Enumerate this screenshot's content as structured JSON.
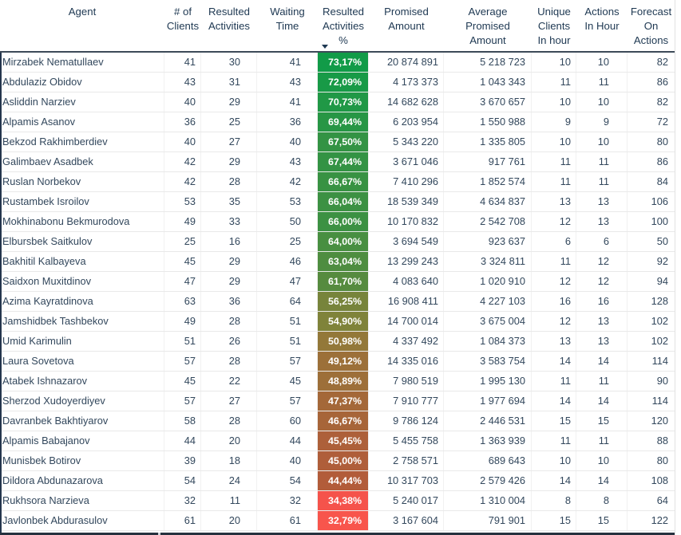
{
  "app": "BI report table visual",
  "colors": {
    "header_text": "#1e3852",
    "body_text": "#32475c",
    "header_underline": "#3d4a58",
    "row_gridline": "#e9e9e9",
    "scrollbar_dark": "#26313e",
    "pct_scale_max_green": "#119b48",
    "pct_scale_mid_olive": "#7f833a",
    "pct_scale_low_brown": "#b25c3a",
    "pct_scale_min_red": "#f8554c"
  },
  "chart_data": {
    "type": "table",
    "title": "Agent performance table",
    "sort": {
      "column": "Resulted Activities %",
      "direction": "desc"
    },
    "columns": [
      {
        "key": "agent",
        "label": "Agent",
        "align": "left"
      },
      {
        "key": "clients",
        "label": "# of\nClients",
        "align": "right"
      },
      {
        "key": "resulted",
        "label": "Resulted\nActivities",
        "align": "right"
      },
      {
        "key": "waiting",
        "label": "Waiting\nTime",
        "align": "right"
      },
      {
        "key": "pct",
        "label": "Resulted\nActivities\n%",
        "align": "right",
        "sorted": true
      },
      {
        "key": "promised",
        "label": "Promised\nAmount",
        "align": "right"
      },
      {
        "key": "avg",
        "label": "Average\nPromised\nAmount",
        "align": "right"
      },
      {
        "key": "unique",
        "label": "Unique\nClients\nIn hour",
        "align": "right"
      },
      {
        "key": "actions",
        "label": "Actions\nIn Hour",
        "align": "right"
      },
      {
        "key": "forecast",
        "label": "Forecast\nOn\nActions",
        "align": "right"
      }
    ],
    "rows": [
      {
        "cells": [
          "Mirzabek Nematullaev",
          "41",
          "30",
          "41",
          "73,17%",
          "20 874 891",
          "5 218 723",
          "10",
          "10",
          "82"
        ],
        "pct_color": "#119b48"
      },
      {
        "cells": [
          "Abdulaziz Obidov",
          "43",
          "31",
          "43",
          "72,09%",
          "4 173 373",
          "1 043 343",
          "11",
          "11",
          "86"
        ],
        "pct_color": "#189a47"
      },
      {
        "cells": [
          "Asliddin Narziev",
          "40",
          "29",
          "41",
          "70,73%",
          "14 682 628",
          "3 670 657",
          "10",
          "10",
          "82"
        ],
        "pct_color": "#209846"
      },
      {
        "cells": [
          "Alpamis Asanov",
          "36",
          "25",
          "36",
          "69,44%",
          "6 203 954",
          "1 550 988",
          "9",
          "9",
          "72"
        ],
        "pct_color": "#279645"
      },
      {
        "cells": [
          "Bekzod Rakhimberdiev",
          "40",
          "27",
          "40",
          "67,50%",
          "5 343 220",
          "1 335 805",
          "10",
          "10",
          "80"
        ],
        "pct_color": "#339344"
      },
      {
        "cells": [
          "Galimbaev Asadbek",
          "42",
          "29",
          "43",
          "67,44%",
          "3 671 046",
          "917 761",
          "11",
          "11",
          "86"
        ],
        "pct_color": "#339344"
      },
      {
        "cells": [
          "Ruslan Norbekov",
          "42",
          "28",
          "42",
          "66,67%",
          "7 410 296",
          "1 852 574",
          "11",
          "11",
          "84"
        ],
        "pct_color": "#389243"
      },
      {
        "cells": [
          "Rustambek Isroilov",
          "53",
          "35",
          "53",
          "66,04%",
          "18 539 349",
          "4 634 837",
          "13",
          "13",
          "106"
        ],
        "pct_color": "#3c9143"
      },
      {
        "cells": [
          "Mokhinabonu Bekmurodova",
          "49",
          "33",
          "50",
          "66,00%",
          "10 170 832",
          "2 542 708",
          "12",
          "13",
          "100"
        ],
        "pct_color": "#3c9143"
      },
      {
        "cells": [
          "Elbursbek Saitkulov",
          "25",
          "16",
          "25",
          "64,00%",
          "3 694 549",
          "923 637",
          "6",
          "6",
          "50"
        ],
        "pct_color": "#488f41"
      },
      {
        "cells": [
          "Bakhitil Kalbayeva",
          "45",
          "29",
          "46",
          "63,04%",
          "13 299 243",
          "3 324 811",
          "11",
          "12",
          "92"
        ],
        "pct_color": "#4e8d40"
      },
      {
        "cells": [
          "Saidxon Muxitdinov",
          "47",
          "29",
          "47",
          "61,70%",
          "4 083 640",
          "1 020 910",
          "12",
          "12",
          "94"
        ],
        "pct_color": "#568b3f"
      },
      {
        "cells": [
          "Azima Kayratdinova",
          "63",
          "36",
          "64",
          "56,25%",
          "16 908 411",
          "4 227 103",
          "16",
          "16",
          "128"
        ],
        "pct_color": "#77843b"
      },
      {
        "cells": [
          "Jamshidbek Tashbekov",
          "49",
          "28",
          "51",
          "54,90%",
          "14 700 014",
          "3 675 004",
          "12",
          "13",
          "102"
        ],
        "pct_color": "#7f833a"
      },
      {
        "cells": [
          "Umid Karimulin",
          "51",
          "26",
          "51",
          "50,98%",
          "4 337 492",
          "1 084 373",
          "13",
          "13",
          "102"
        ],
        "pct_color": "#937839"
      },
      {
        "cells": [
          "Laura Sovetova",
          "57",
          "28",
          "57",
          "49,12%",
          "14 335 016",
          "3 583 754",
          "14",
          "14",
          "114"
        ],
        "pct_color": "#9c7039"
      },
      {
        "cells": [
          "Atabek Ishnazarov",
          "45",
          "22",
          "45",
          "48,89%",
          "7 980 519",
          "1 995 130",
          "11",
          "11",
          "90"
        ],
        "pct_color": "#9d6f39"
      },
      {
        "cells": [
          "Sherzod Xudoyerdiyev",
          "57",
          "27",
          "57",
          "47,37%",
          "7 910 777",
          "1 977 694",
          "14",
          "14",
          "114"
        ],
        "pct_color": "#a46839"
      },
      {
        "cells": [
          "Davranbek Bakhtiyarov",
          "58",
          "28",
          "60",
          "46,67%",
          "9 786 124",
          "2 446 531",
          "15",
          "15",
          "120"
        ],
        "pct_color": "#a76539"
      },
      {
        "cells": [
          "Alpamis Babajanov",
          "44",
          "20",
          "44",
          "45,45%",
          "5 455 758",
          "1 363 939",
          "11",
          "11",
          "88"
        ],
        "pct_color": "#ad603a"
      },
      {
        "cells": [
          "Munisbek Botirov",
          "39",
          "18",
          "40",
          "45,00%",
          "2 758 571",
          "689 643",
          "10",
          "10",
          "80"
        ],
        "pct_color": "#af5e3a"
      },
      {
        "cells": [
          "Dildora Abdunazarova",
          "54",
          "24",
          "54",
          "44,44%",
          "10 317 703",
          "2 579 426",
          "14",
          "14",
          "108"
        ],
        "pct_color": "#b25c3a"
      },
      {
        "cells": [
          "Rukhsora Narzieva",
          "32",
          "11",
          "32",
          "34,38%",
          "5 240 017",
          "1 310 004",
          "8",
          "8",
          "64"
        ],
        "pct_color": "#f5534b"
      },
      {
        "cells": [
          "Javlonbek Abdurasulov",
          "61",
          "20",
          "61",
          "32,79%",
          "3 167 604",
          "791 901",
          "15",
          "15",
          "122"
        ],
        "pct_color": "#f8554c"
      }
    ]
  }
}
